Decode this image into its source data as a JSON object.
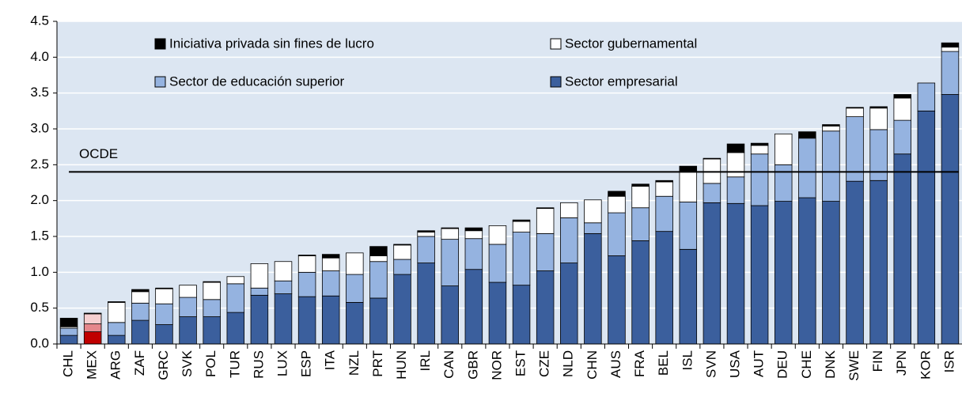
{
  "chart_data": {
    "type": "stacked_bar",
    "categories": [
      "CHL",
      "MEX",
      "ARG",
      "ZAF",
      "GRC",
      "SVK",
      "POL",
      "TUR",
      "RUS",
      "LUX",
      "ESP",
      "ITA",
      "NZL",
      "PRT",
      "HUN",
      "IRL",
      "CAN",
      "GBR",
      "NOR",
      "EST",
      "CZE",
      "NLD",
      "CHN",
      "AUS",
      "FRA",
      "BEL",
      "ISL",
      "SVN",
      "USA",
      "AUT",
      "DEU",
      "CHE",
      "DNK",
      "SWE",
      "FIN",
      "JPN",
      "KOR",
      "ISR"
    ],
    "series": [
      {
        "name": "Sector empresarial",
        "color": "#3b5f9d",
        "highlight_color": "#c00000",
        "values": [
          0.12,
          0.17,
          0.12,
          0.33,
          0.27,
          0.38,
          0.38,
          0.44,
          0.68,
          0.7,
          0.66,
          0.67,
          0.58,
          0.64,
          0.97,
          1.13,
          0.81,
          1.04,
          0.86,
          0.82,
          1.02,
          1.13,
          1.54,
          1.23,
          1.44,
          1.57,
          1.32,
          1.97,
          1.96,
          1.93,
          1.99,
          2.04,
          1.99,
          2.27,
          2.28,
          2.65,
          3.25,
          3.48
        ]
      },
      {
        "name": "Sector de educación superior",
        "color": "#95b3e0",
        "highlight_color": "#e5878c",
        "values": [
          0.1,
          0.11,
          0.18,
          0.24,
          0.29,
          0.27,
          0.24,
          0.4,
          0.1,
          0.18,
          0.34,
          0.35,
          0.39,
          0.51,
          0.21,
          0.37,
          0.65,
          0.43,
          0.53,
          0.74,
          0.52,
          0.63,
          0.15,
          0.6,
          0.46,
          0.49,
          0.66,
          0.27,
          0.37,
          0.72,
          0.51,
          0.83,
          0.98,
          0.9,
          0.71,
          0.47,
          0.39,
          0.6
        ]
      },
      {
        "name": "Sector gubernamental",
        "color": "#ffffff",
        "highlight_color": "#f6cfd0",
        "values": [
          0.02,
          0.14,
          0.28,
          0.16,
          0.21,
          0.17,
          0.24,
          0.1,
          0.34,
          0.27,
          0.23,
          0.18,
          0.3,
          0.08,
          0.2,
          0.06,
          0.15,
          0.11,
          0.26,
          0.15,
          0.35,
          0.21,
          0.32,
          0.23,
          0.3,
          0.2,
          0.43,
          0.34,
          0.34,
          0.12,
          0.43,
          0.01,
          0.07,
          0.12,
          0.3,
          0.31,
          0,
          0.06
        ]
      },
      {
        "name": "Iniciativa privada sin fines de lucro",
        "color": "#000000",
        "highlight_color": "#000000",
        "values": [
          0.12,
          0.01,
          0.01,
          0.03,
          0.01,
          0,
          0.01,
          0,
          0,
          0,
          0.01,
          0.05,
          0,
          0.13,
          0.01,
          0.02,
          0.01,
          0.04,
          0,
          0.02,
          0.01,
          0,
          0,
          0.07,
          0.03,
          0.02,
          0.07,
          0.01,
          0.12,
          0.03,
          0,
          0.08,
          0.02,
          0.01,
          0.02,
          0.05,
          0,
          0.06
        ]
      }
    ],
    "highlight_category": "MEX",
    "reference_line": {
      "label": "OCDE",
      "value": 2.4
    },
    "ylim": [
      0,
      4.5
    ],
    "yticks": [
      {
        "value": 0,
        "label": "0.0"
      },
      0.5,
      {
        "value": 1,
        "label": "1.0"
      },
      1.5,
      {
        "value": 2,
        "label": "2.0"
      },
      2.5,
      {
        "value": 3,
        "label": "3.0"
      },
      3.5,
      {
        "value": 4,
        "label": "4.0"
      },
      4.5
    ],
    "grid": true,
    "plot_background": "#dce6f2"
  }
}
